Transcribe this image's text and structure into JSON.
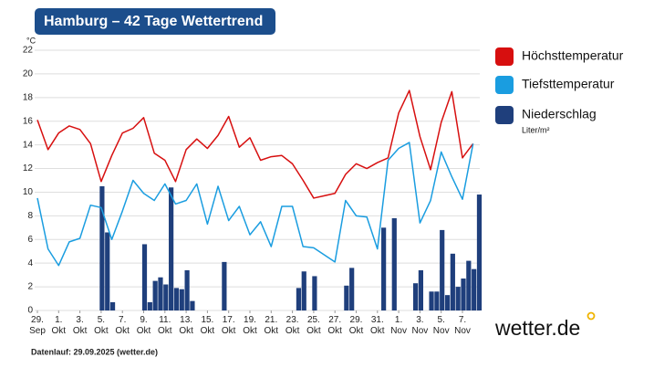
{
  "chart_data": {
    "type": "line",
    "title": "Hamburg – 42 Tage Wettertrend",
    "y_unit": "°C",
    "footnote": "Datenlauf: 29.09.2025 (wetter.de)",
    "brand": "wetter.de",
    "categories": [
      "29. Sep",
      null,
      "1. Okt",
      null,
      "3. Okt",
      null,
      "5. Okt",
      null,
      "7. Okt",
      null,
      "9. Okt",
      null,
      "11. Okt",
      null,
      "13. Okt",
      null,
      "15. Okt",
      null,
      "17. Okt",
      null,
      "19. Okt",
      null,
      "21. Okt",
      null,
      "23. Okt",
      null,
      "25. Okt",
      null,
      "27. Okt",
      null,
      "29. Okt",
      null,
      "31. Okt",
      null,
      "1. Nov",
      null,
      "3. Nov",
      null,
      "5. Nov",
      null,
      "7. Nov",
      null
    ],
    "series": [
      {
        "name": "Höchsttemperatur",
        "color": "#d70f0f",
        "values": [
          16.1,
          13.6,
          15.0,
          15.6,
          15.3,
          14.1,
          10.9,
          13.1,
          15.0,
          15.4,
          16.3,
          13.3,
          12.7,
          10.9,
          13.6,
          14.5,
          13.7,
          14.8,
          16.4,
          13.8,
          14.6,
          12.7,
          13.0,
          13.1,
          12.4,
          11.0,
          9.5,
          9.7,
          9.9,
          11.5,
          12.4,
          12.0,
          12.5,
          12.9,
          16.7,
          18.6,
          14.7,
          11.9,
          15.9,
          18.5,
          12.9,
          14.1
        ]
      },
      {
        "name": "Tiefsttemperatur",
        "color": "#1a9de0",
        "values": [
          9.5,
          5.2,
          3.8,
          5.8,
          6.1,
          8.9,
          8.7,
          6.0,
          8.4,
          11.0,
          9.9,
          9.3,
          10.7,
          9.0,
          9.3,
          10.7,
          7.3,
          10.5,
          7.6,
          8.8,
          6.4,
          7.5,
          5.4,
          8.8,
          8.8,
          5.4,
          5.3,
          4.7,
          4.1,
          9.3,
          8.0,
          7.9,
          5.2,
          12.7,
          13.7,
          14.2,
          7.4,
          9.3,
          13.4,
          11.3,
          9.4,
          14.1
        ]
      }
    ],
    "precipitation": {
      "name": "Niederschlag",
      "unit": "Liter/m²",
      "color": "#1f3f7c",
      "values": [
        0,
        0,
        0,
        0,
        0,
        0,
        0,
        0,
        0,
        0,
        0,
        0,
        10.5,
        6.6,
        0.7,
        0,
        0,
        0,
        0,
        0,
        5.6,
        0.7,
        2.5,
        2.8,
        2.2,
        10.4,
        1.9,
        1.8,
        3.4,
        0.8,
        0,
        0,
        0,
        0,
        0,
        4.1,
        0,
        0,
        0,
        0,
        0,
        0,
        0,
        0,
        0,
        0,
        0,
        0,
        0,
        1.9,
        3.3,
        0,
        2.9,
        0,
        0,
        0,
        0,
        0,
        2.1,
        3.6,
        0,
        0,
        0,
        0,
        0,
        7.0,
        0,
        7.8,
        0,
        0,
        0,
        2.3,
        3.4,
        0,
        1.6,
        1.6,
        6.8,
        1.3,
        4.8,
        2.0,
        2.7,
        4.2,
        3.5,
        9.8
      ]
    },
    "ylim": [
      0,
      22
    ],
    "yticks": [
      0,
      2,
      4,
      6,
      8,
      10,
      12,
      14,
      16,
      18,
      20,
      22
    ],
    "grid": true
  }
}
